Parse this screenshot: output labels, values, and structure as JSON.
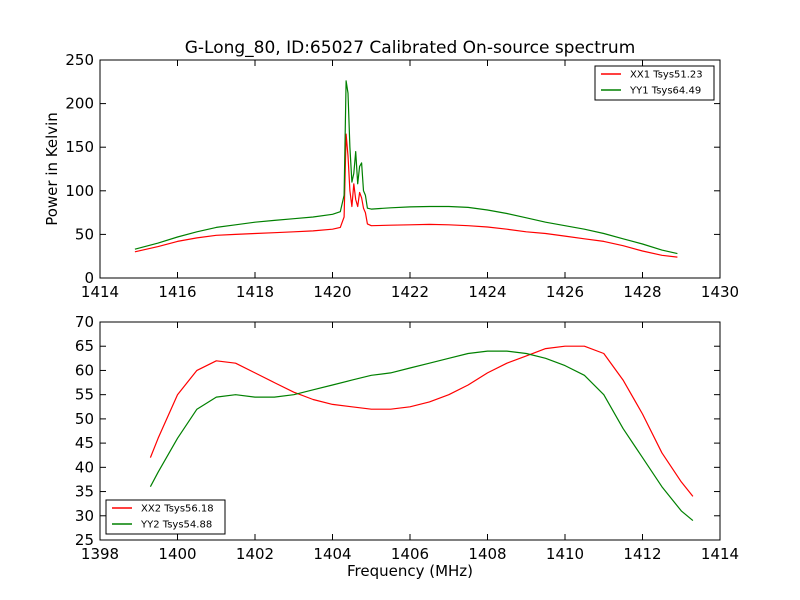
{
  "chart_data": [
    {
      "type": "line",
      "title": "G-Long_80, ID:65027 Calibrated On-source spectrum",
      "xlabel": "",
      "ylabel": "Power in Kelvin",
      "xlim": [
        1414,
        1430
      ],
      "ylim": [
        0,
        250
      ],
      "xticks": [
        1414,
        1416,
        1418,
        1420,
        1422,
        1424,
        1426,
        1428,
        1430
      ],
      "yticks": [
        0,
        50,
        100,
        150,
        200,
        250
      ],
      "legend_position": "upper-right",
      "grid": false,
      "series": [
        {
          "name": "XX1 Tsys51.23",
          "color": "#ff0000",
          "x": [
            1414.9,
            1415.5,
            1416,
            1416.5,
            1417,
            1417.5,
            1418,
            1418.5,
            1419,
            1419.5,
            1420,
            1420.2,
            1420.3,
            1420.35,
            1420.4,
            1420.45,
            1420.5,
            1420.55,
            1420.6,
            1420.65,
            1420.7,
            1420.75,
            1420.8,
            1420.85,
            1420.9,
            1421,
            1421.5,
            1422,
            1422.5,
            1423,
            1423.5,
            1424,
            1424.5,
            1425,
            1425.5,
            1426,
            1426.5,
            1427,
            1427.5,
            1428,
            1428.5,
            1428.9
          ],
          "y": [
            30,
            36,
            42,
            46,
            49,
            50,
            51,
            52,
            53,
            54,
            56,
            58,
            70,
            165,
            140,
            100,
            82,
            108,
            90,
            82,
            98,
            92,
            80,
            75,
            62,
            60,
            60.5,
            61,
            61.5,
            61,
            60,
            58.5,
            56,
            53,
            51,
            48,
            45,
            42,
            37,
            31,
            26,
            24
          ]
        },
        {
          "name": "YY1 Tsys64.49",
          "color": "#008000",
          "x": [
            1414.9,
            1415.5,
            1416,
            1416.5,
            1417,
            1417.5,
            1418,
            1418.5,
            1419,
            1419.5,
            1420,
            1420.2,
            1420.3,
            1420.35,
            1420.4,
            1420.45,
            1420.5,
            1420.55,
            1420.6,
            1420.65,
            1420.7,
            1420.75,
            1420.8,
            1420.85,
            1420.9,
            1421,
            1421.5,
            1422,
            1422.5,
            1423,
            1423.5,
            1424,
            1424.5,
            1425,
            1425.5,
            1426,
            1426.5,
            1427,
            1427.5,
            1428,
            1428.5,
            1428.9
          ],
          "y": [
            33,
            40,
            47,
            53,
            58,
            61,
            64,
            66,
            68,
            70,
            73,
            76,
            95,
            226,
            212,
            150,
            110,
            120,
            145,
            108,
            128,
            132,
            100,
            95,
            80,
            79,
            80.5,
            81.5,
            82,
            82,
            81,
            78,
            74,
            69,
            64,
            60,
            56,
            51,
            45,
            39,
            32,
            28
          ]
        }
      ]
    },
    {
      "type": "line",
      "title": "",
      "xlabel": "Frequency (MHz)",
      "ylabel": "",
      "xlim": [
        1398,
        1414
      ],
      "ylim": [
        25,
        70
      ],
      "xticks": [
        1398,
        1400,
        1402,
        1404,
        1406,
        1408,
        1410,
        1412,
        1414
      ],
      "yticks": [
        25,
        30,
        35,
        40,
        45,
        50,
        55,
        60,
        65,
        70
      ],
      "legend_position": "lower-left",
      "grid": false,
      "series": [
        {
          "name": "XX2 Tsys56.18",
          "color": "#ff0000",
          "x": [
            1399.3,
            1399.5,
            1400,
            1400.5,
            1401,
            1401.5,
            1402,
            1402.5,
            1403,
            1403.5,
            1404,
            1404.5,
            1405,
            1405.5,
            1406,
            1406.5,
            1407,
            1407.5,
            1408,
            1408.5,
            1409,
            1409.5,
            1410,
            1410.5,
            1411,
            1411.5,
            1412,
            1412.5,
            1413,
            1413.3
          ],
          "y": [
            42,
            46,
            55,
            60,
            62,
            61.5,
            59.5,
            57.5,
            55.5,
            54,
            53,
            52.5,
            52,
            52,
            52.5,
            53.5,
            55,
            57,
            59.5,
            61.5,
            63,
            64.5,
            65,
            65,
            63.5,
            58,
            51,
            43,
            37,
            34
          ]
        },
        {
          "name": "YY2 Tsys54.88",
          "color": "#008000",
          "x": [
            1399.3,
            1399.5,
            1400,
            1400.5,
            1401,
            1401.5,
            1402,
            1402.5,
            1403,
            1403.5,
            1404,
            1404.5,
            1405,
            1405.5,
            1406,
            1406.5,
            1407,
            1407.5,
            1408,
            1408.5,
            1409,
            1409.5,
            1410,
            1410.5,
            1411,
            1411.5,
            1412,
            1412.5,
            1413,
            1413.3
          ],
          "y": [
            36,
            39,
            46,
            52,
            54.5,
            55,
            54.5,
            54.5,
            55,
            56,
            57,
            58,
            59,
            59.5,
            60.5,
            61.5,
            62.5,
            63.5,
            64,
            64,
            63.5,
            62.5,
            61,
            59,
            55,
            48,
            42,
            36,
            31,
            29
          ]
        }
      ]
    }
  ]
}
